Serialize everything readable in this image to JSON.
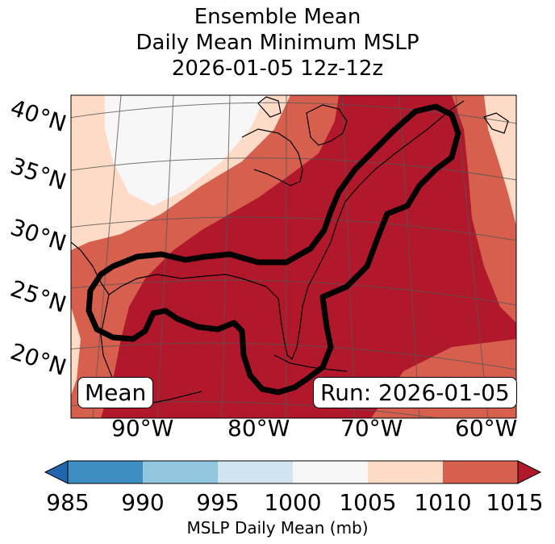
{
  "title": {
    "line1": "Ensemble Mean",
    "line2": "Daily Mean Minimum MSLP",
    "line3": "2026-01-05 12z-12z"
  },
  "map": {
    "lat_labels": [
      "40°N",
      "35°N",
      "30°N",
      "25°N",
      "20°N"
    ],
    "lon_labels": [
      "90°W",
      "80°W",
      "70°W",
      "60°W"
    ],
    "left_box": "Mean",
    "right_box": "Run: 2026-01-05",
    "colors": {
      "c985": "#2166ac",
      "c990_995": "#3e8ec4",
      "c995_1000": "#92c5de",
      "c1000_1005": "#d1e5f0",
      "c1005_1010": "#f7f7f7",
      "c1010_1015": "#fddbc7",
      "c1015": "#d6604d",
      "cover": "#b2182b"
    }
  },
  "colorbar": {
    "ticks": [
      "985",
      "990",
      "995",
      "1000",
      "1005",
      "1010",
      "1015"
    ],
    "label": "MSLP Daily Mean (mb)",
    "colors": [
      "#2166ac",
      "#3e8ec4",
      "#92c5de",
      "#d1e5f0",
      "#f7f7f7",
      "#fddbc7",
      "#d6604d",
      "#b2182b"
    ]
  }
}
